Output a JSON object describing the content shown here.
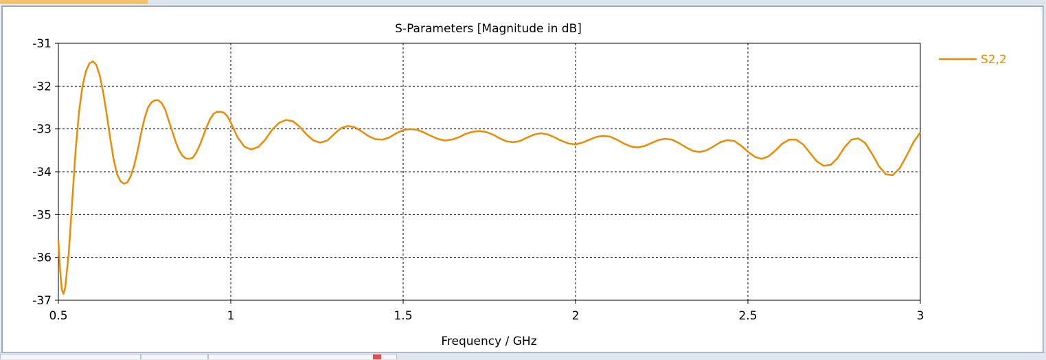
{
  "chart_data": {
    "type": "line",
    "title": "S-Parameters [Magnitude in dB]",
    "xlabel": "Frequency / GHz",
    "ylabel": "",
    "xlim": [
      0.5,
      3
    ],
    "ylim": [
      -37,
      -31
    ],
    "xticks": [
      "0.5",
      "1",
      "1.5",
      "2",
      "2.5",
      "3"
    ],
    "yticks": [
      "-31",
      "-32",
      "-33",
      "-34",
      "-35",
      "-36",
      "-37"
    ],
    "grid": true,
    "legend": "right",
    "series": [
      {
        "name": "S2,2",
        "color": "#ee8a00",
        "points": [
          [
            0.5,
            -35.6
          ],
          [
            0.505,
            -36.3
          ],
          [
            0.51,
            -36.75
          ],
          [
            0.515,
            -36.85
          ],
          [
            0.52,
            -36.7
          ],
          [
            0.53,
            -35.9
          ],
          [
            0.54,
            -34.7
          ],
          [
            0.55,
            -33.5
          ],
          [
            0.56,
            -32.6
          ],
          [
            0.57,
            -32.0
          ],
          [
            0.58,
            -31.65
          ],
          [
            0.59,
            -31.47
          ],
          [
            0.6,
            -31.42
          ],
          [
            0.61,
            -31.5
          ],
          [
            0.62,
            -31.75
          ],
          [
            0.63,
            -32.15
          ],
          [
            0.64,
            -32.65
          ],
          [
            0.65,
            -33.2
          ],
          [
            0.66,
            -33.7
          ],
          [
            0.67,
            -34.05
          ],
          [
            0.68,
            -34.22
          ],
          [
            0.69,
            -34.28
          ],
          [
            0.7,
            -34.25
          ],
          [
            0.71,
            -34.1
          ],
          [
            0.72,
            -33.85
          ],
          [
            0.73,
            -33.5
          ],
          [
            0.74,
            -33.1
          ],
          [
            0.75,
            -32.75
          ],
          [
            0.76,
            -32.5
          ],
          [
            0.77,
            -32.38
          ],
          [
            0.78,
            -32.33
          ],
          [
            0.79,
            -32.33
          ],
          [
            0.8,
            -32.4
          ],
          [
            0.81,
            -32.55
          ],
          [
            0.82,
            -32.8
          ],
          [
            0.83,
            -33.05
          ],
          [
            0.84,
            -33.3
          ],
          [
            0.85,
            -33.5
          ],
          [
            0.86,
            -33.63
          ],
          [
            0.87,
            -33.69
          ],
          [
            0.88,
            -33.7
          ],
          [
            0.89,
            -33.67
          ],
          [
            0.9,
            -33.55
          ],
          [
            0.91,
            -33.38
          ],
          [
            0.92,
            -33.17
          ],
          [
            0.93,
            -32.95
          ],
          [
            0.94,
            -32.77
          ],
          [
            0.95,
            -32.65
          ],
          [
            0.96,
            -32.6
          ],
          [
            0.97,
            -32.6
          ],
          [
            0.98,
            -32.62
          ],
          [
            0.99,
            -32.7
          ],
          [
            1.0,
            -32.85
          ],
          [
            1.02,
            -33.2
          ],
          [
            1.04,
            -33.42
          ],
          [
            1.06,
            -33.48
          ],
          [
            1.08,
            -33.42
          ],
          [
            1.1,
            -33.25
          ],
          [
            1.12,
            -33.02
          ],
          [
            1.14,
            -32.86
          ],
          [
            1.16,
            -32.79
          ],
          [
            1.18,
            -32.82
          ],
          [
            1.2,
            -32.95
          ],
          [
            1.22,
            -33.13
          ],
          [
            1.24,
            -33.27
          ],
          [
            1.26,
            -33.32
          ],
          [
            1.28,
            -33.27
          ],
          [
            1.3,
            -33.12
          ],
          [
            1.32,
            -32.98
          ],
          [
            1.34,
            -32.93
          ],
          [
            1.36,
            -32.96
          ],
          [
            1.38,
            -33.06
          ],
          [
            1.4,
            -33.17
          ],
          [
            1.42,
            -33.24
          ],
          [
            1.44,
            -33.25
          ],
          [
            1.46,
            -33.2
          ],
          [
            1.48,
            -33.1
          ],
          [
            1.5,
            -33.03
          ],
          [
            1.52,
            -33.0
          ],
          [
            1.54,
            -33.02
          ],
          [
            1.56,
            -33.08
          ],
          [
            1.58,
            -33.16
          ],
          [
            1.6,
            -33.23
          ],
          [
            1.62,
            -33.27
          ],
          [
            1.64,
            -33.25
          ],
          [
            1.66,
            -33.2
          ],
          [
            1.68,
            -33.12
          ],
          [
            1.7,
            -33.07
          ],
          [
            1.72,
            -33.05
          ],
          [
            1.74,
            -33.07
          ],
          [
            1.76,
            -33.13
          ],
          [
            1.78,
            -33.22
          ],
          [
            1.8,
            -33.29
          ],
          [
            1.82,
            -33.31
          ],
          [
            1.84,
            -33.28
          ],
          [
            1.86,
            -33.2
          ],
          [
            1.88,
            -33.13
          ],
          [
            1.9,
            -33.1
          ],
          [
            1.92,
            -33.13
          ],
          [
            1.94,
            -33.2
          ],
          [
            1.96,
            -33.28
          ],
          [
            1.98,
            -33.34
          ],
          [
            2.0,
            -33.36
          ],
          [
            2.02,
            -33.32
          ],
          [
            2.04,
            -33.25
          ],
          [
            2.06,
            -33.19
          ],
          [
            2.08,
            -33.16
          ],
          [
            2.1,
            -33.18
          ],
          [
            2.12,
            -33.25
          ],
          [
            2.14,
            -33.34
          ],
          [
            2.16,
            -33.41
          ],
          [
            2.18,
            -33.43
          ],
          [
            2.2,
            -33.4
          ],
          [
            2.22,
            -33.33
          ],
          [
            2.24,
            -33.26
          ],
          [
            2.26,
            -33.23
          ],
          [
            2.28,
            -33.25
          ],
          [
            2.3,
            -33.33
          ],
          [
            2.32,
            -33.43
          ],
          [
            2.34,
            -33.51
          ],
          [
            2.36,
            -33.54
          ],
          [
            2.38,
            -33.5
          ],
          [
            2.4,
            -33.41
          ],
          [
            2.42,
            -33.31
          ],
          [
            2.44,
            -33.26
          ],
          [
            2.46,
            -33.28
          ],
          [
            2.48,
            -33.39
          ],
          [
            2.5,
            -33.53
          ],
          [
            2.52,
            -33.65
          ],
          [
            2.54,
            -33.7
          ],
          [
            2.56,
            -33.64
          ],
          [
            2.58,
            -33.5
          ],
          [
            2.6,
            -33.34
          ],
          [
            2.62,
            -33.25
          ],
          [
            2.64,
            -33.25
          ],
          [
            2.66,
            -33.36
          ],
          [
            2.68,
            -33.56
          ],
          [
            2.7,
            -33.76
          ],
          [
            2.72,
            -33.86
          ],
          [
            2.74,
            -33.84
          ],
          [
            2.76,
            -33.68
          ],
          [
            2.78,
            -33.43
          ],
          [
            2.8,
            -33.25
          ],
          [
            2.82,
            -33.22
          ],
          [
            2.84,
            -33.33
          ],
          [
            2.86,
            -33.58
          ],
          [
            2.88,
            -33.87
          ],
          [
            2.9,
            -34.06
          ],
          [
            2.92,
            -34.08
          ],
          [
            2.94,
            -33.92
          ],
          [
            2.96,
            -33.63
          ],
          [
            2.98,
            -33.31
          ],
          [
            3.0,
            -33.08
          ]
        ]
      }
    ]
  }
}
